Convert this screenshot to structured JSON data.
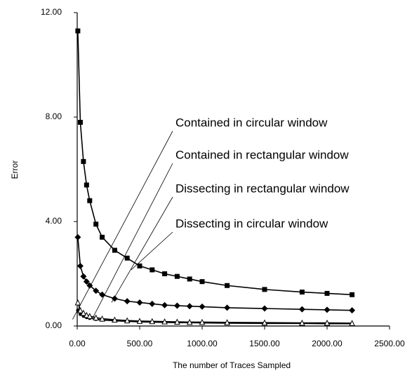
{
  "chart_data": {
    "type": "scatter",
    "xlabel": "The number of Traces Sampled",
    "ylabel": "Error",
    "xlim": [
      0,
      2500
    ],
    "ylim": [
      0,
      12
    ],
    "xticks": [
      {
        "value": 0,
        "label": "0.00"
      },
      {
        "value": 500,
        "label": "500.00"
      },
      {
        "value": 1000,
        "label": "1000.00"
      },
      {
        "value": 1500,
        "label": "1500.00"
      },
      {
        "value": 2000,
        "label": "2000.00"
      },
      {
        "value": 2500,
        "label": "2500.00"
      }
    ],
    "yticks": [
      {
        "value": 0,
        "label": "0.00"
      },
      {
        "value": 4,
        "label": "4.00"
      },
      {
        "value": 8,
        "label": "8.00"
      },
      {
        "value": 12,
        "label": "12.00"
      }
    ],
    "x": [
      5,
      25,
      50,
      75,
      100,
      150,
      200,
      300,
      400,
      500,
      600,
      700,
      800,
      900,
      1000,
      1200,
      1500,
      1800,
      2000,
      2200
    ],
    "series": [
      {
        "name": "Contained in circular window",
        "color": "#000000",
        "marker": "circle",
        "values": [
          0.6,
          0.45,
          0.38,
          0.33,
          0.3,
          0.26,
          0.23,
          0.2,
          0.18,
          0.16,
          0.15,
          0.14,
          0.13,
          0.13,
          0.12,
          0.11,
          0.1,
          0.1,
          0.09,
          0.09
        ]
      },
      {
        "name": "Contained in rectangular window",
        "color": "#000000",
        "marker": "triangle",
        "values": [
          0.9,
          0.6,
          0.5,
          0.42,
          0.38,
          0.32,
          0.28,
          0.24,
          0.21,
          0.19,
          0.18,
          0.17,
          0.16,
          0.15,
          0.15,
          0.14,
          0.13,
          0.12,
          0.12,
          0.11
        ]
      },
      {
        "name": "Dissecting in rectangular window",
        "color": "#000000",
        "marker": "diamond",
        "values": [
          3.4,
          2.3,
          1.9,
          1.7,
          1.55,
          1.35,
          1.2,
          1.05,
          0.95,
          0.9,
          0.85,
          0.8,
          0.78,
          0.76,
          0.74,
          0.7,
          0.67,
          0.64,
          0.62,
          0.6
        ]
      },
      {
        "name": "Dissecting in circular window",
        "color": "#000000",
        "marker": "square",
        "values": [
          11.3,
          7.8,
          6.3,
          5.4,
          4.8,
          3.9,
          3.4,
          2.9,
          2.6,
          2.3,
          2.15,
          2.0,
          1.9,
          1.8,
          1.7,
          1.55,
          1.4,
          1.3,
          1.25,
          1.2
        ]
      }
    ]
  }
}
